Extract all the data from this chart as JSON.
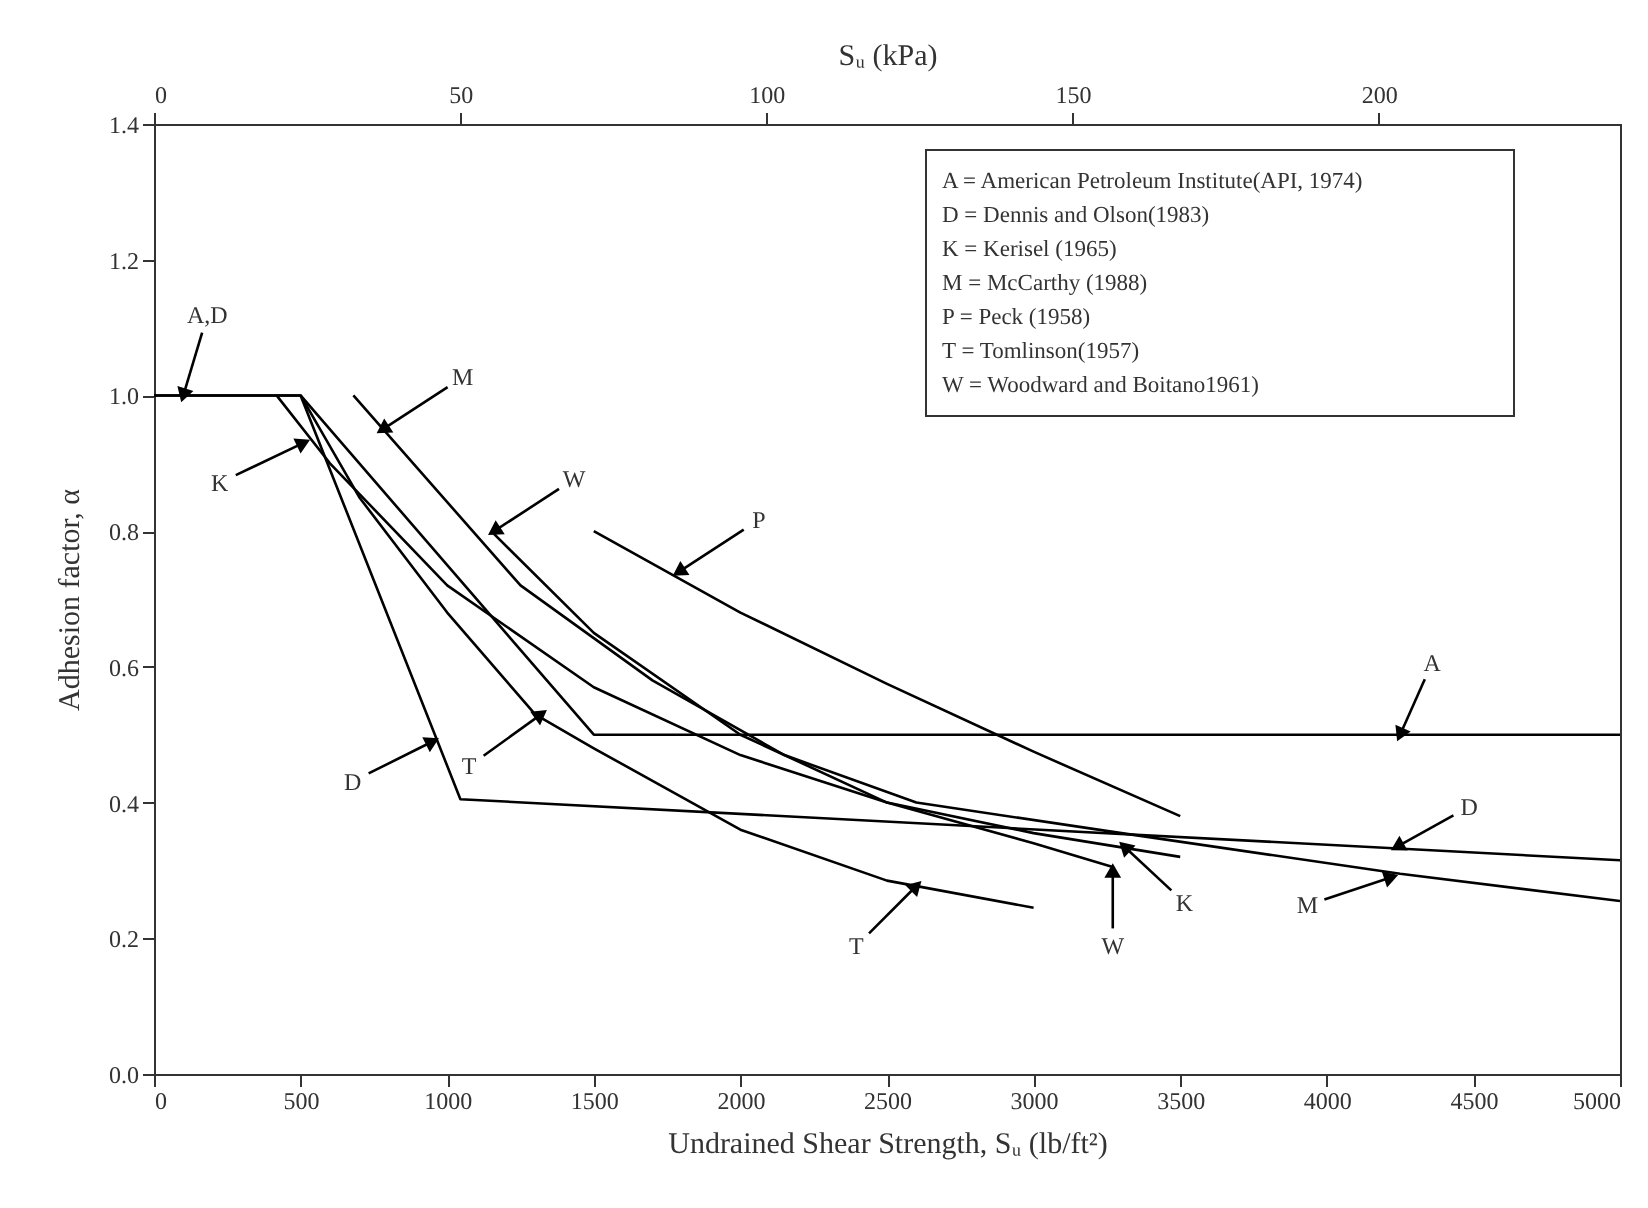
{
  "chart_data": {
    "type": "line",
    "xlabel": "Undrained Shear Strength, Sᵤ (lb/ft²)",
    "x2label": "Sᵤ (kPa)",
    "ylabel": "Adhesion factor, α",
    "xlim": [
      0,
      5000
    ],
    "xticks": [
      0,
      500,
      1000,
      1500,
      2000,
      2500,
      3000,
      3500,
      4000,
      4500,
      5000
    ],
    "x2lim": [
      0,
      239.4
    ],
    "x2ticks": [
      0,
      50,
      100,
      150,
      200
    ],
    "ylim": [
      0,
      1.4
    ],
    "yticks": [
      {
        "value": 0,
        "label": "0.0"
      },
      {
        "value": 0.2,
        "label": "0.2"
      },
      {
        "value": 0.4,
        "label": "0.4"
      },
      {
        "value": 0.6,
        "label": "0.6"
      },
      {
        "value": 0.8,
        "label": "0.8"
      },
      {
        "value": 1.0,
        "label": "1.0"
      },
      {
        "value": 1.2,
        "label": "1.2"
      },
      {
        "value": 1.4,
        "label": "1.4"
      }
    ],
    "grid": false,
    "series": [
      {
        "color": "#000000",
        "x": [
          0,
          500,
          1500,
          5000
        ],
        "values": [
          1.0,
          1.0,
          0.5,
          0.5
        ]
      },
      {
        "color": "#000000",
        "x": [
          0,
          500,
          1045,
          5000
        ],
        "values": [
          1.0,
          1.0,
          0.405,
          0.315
        ]
      },
      {
        "color": "#000000",
        "x": [
          418,
          600,
          1000,
          1500,
          2000,
          2500,
          3000,
          3500
        ],
        "values": [
          1.0,
          0.9,
          0.72,
          0.57,
          0.47,
          0.4,
          0.355,
          0.32
        ]
      },
      {
        "color": "#000000",
        "x": [
          680,
          1250,
          1700,
          2150,
          2600,
          3300,
          4250,
          5000
        ],
        "values": [
          1.0,
          0.72,
          0.58,
          0.47,
          0.4,
          0.355,
          0.295,
          0.255
        ]
      },
      {
        "color": "#000000",
        "x": [
          1500,
          2000,
          2500,
          3000,
          3500
        ],
        "values": [
          0.8,
          0.68,
          0.575,
          0.475,
          0.38
        ]
      },
      {
        "color": "#000000",
        "x": [
          500,
          700,
          1000,
          1300,
          1500,
          2000,
          2500,
          3000
        ],
        "values": [
          1.0,
          0.85,
          0.68,
          0.53,
          0.48,
          0.36,
          0.285,
          0.245
        ]
      },
      {
        "color": "#000000",
        "x": [
          1150,
          1500,
          2000,
          2500,
          3000,
          3270
        ],
        "values": [
          0.8,
          0.65,
          0.5,
          0.4,
          0.34,
          0.305
        ]
      }
    ],
    "annotations": [
      {
        "text": "A,D",
        "x": 100,
        "y": 1.0
      },
      {
        "text": "M",
        "x": 780,
        "y": 0.95
      },
      {
        "text": "K",
        "x": 510,
        "y": 0.93
      },
      {
        "text": "W",
        "x": 1160,
        "y": 0.8
      },
      {
        "text": "P",
        "x": 1790,
        "y": 0.74
      },
      {
        "text": "D",
        "x": 950,
        "y": 0.49
      },
      {
        "text": "T",
        "x": 1320,
        "y": 0.53
      },
      {
        "text": "A",
        "x": 4250,
        "y": 0.5
      },
      {
        "text": "D",
        "x": 4240,
        "y": 0.335
      },
      {
        "text": "M",
        "x": 4220,
        "y": 0.29
      },
      {
        "text": "K",
        "x": 3310,
        "y": 0.335
      },
      {
        "text": "W",
        "x": 3270,
        "y": 0.3
      },
      {
        "text": "T",
        "x": 2600,
        "y": 0.277
      },
      "A = American Petroleum Institute(API, 1974)",
      "D = Dennis and Olson(1983)",
      "K = Kerisel (1965)",
      "M = McCarthy (1988)",
      "P = Peck (1958)",
      "T = Tomlinson(1957)",
      "W = Woodward and Boitano1961)"
    ]
  }
}
